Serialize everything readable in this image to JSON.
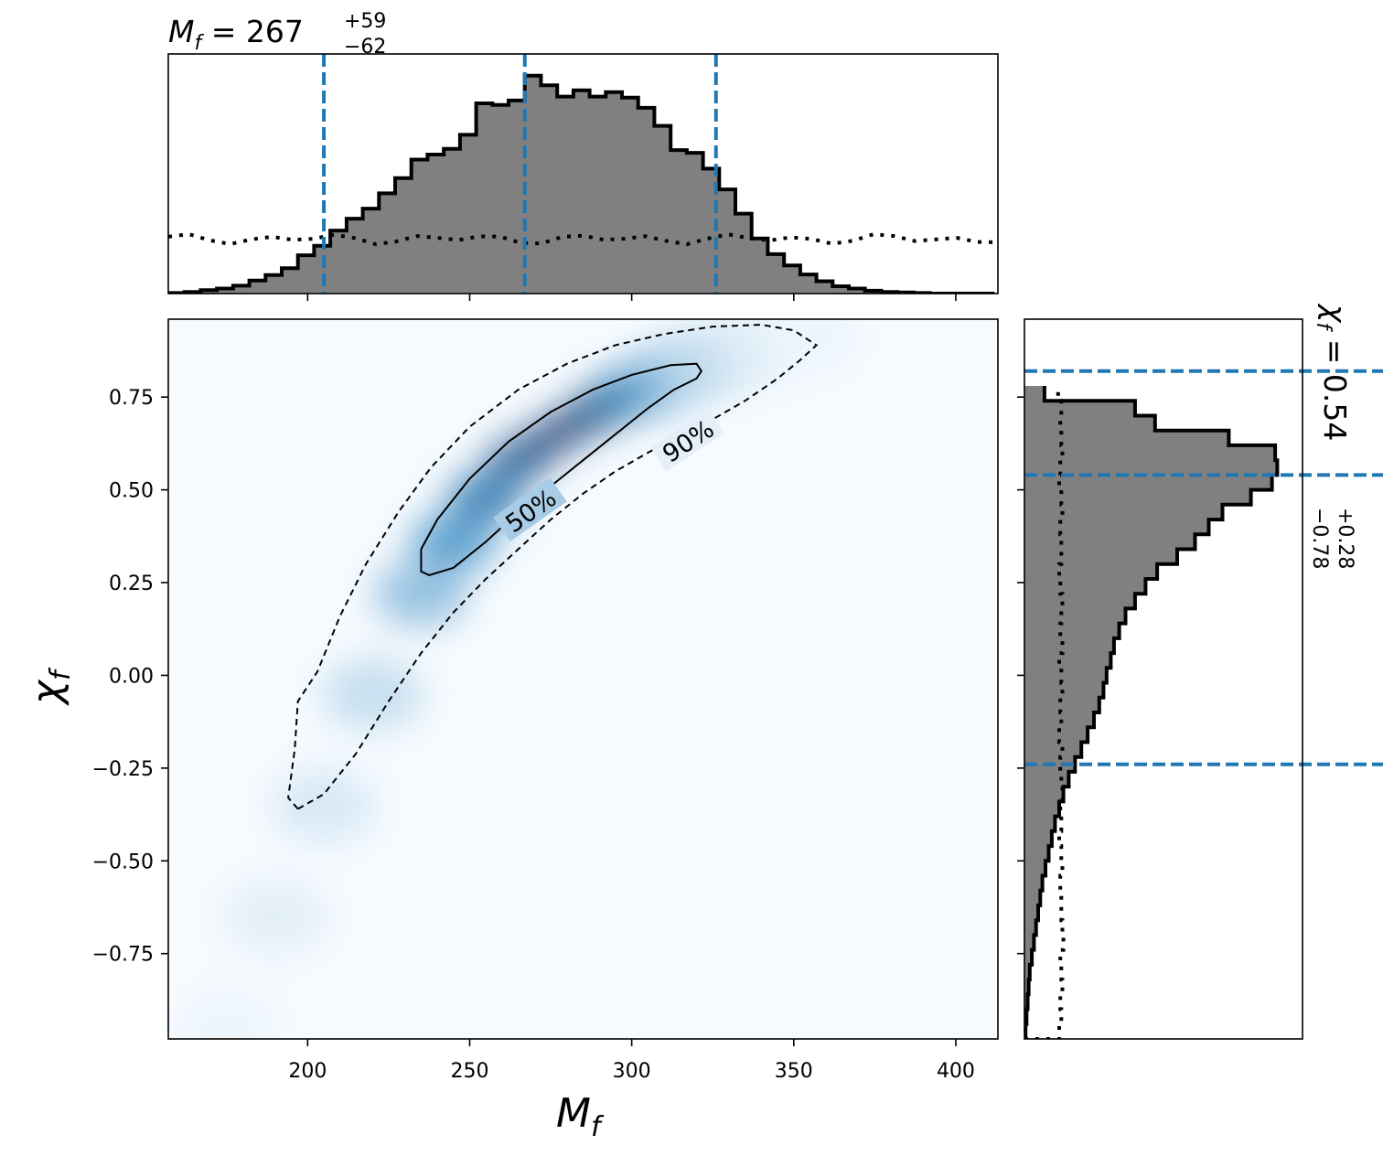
{
  "chart_data": {
    "type": "scatter",
    "subtype": "corner-plot",
    "x_param": "M_f",
    "y_param": "χ_f",
    "xlim": [
      157,
      413
    ],
    "ylim": [
      -0.98,
      0.96
    ],
    "xticks": [
      200,
      250,
      300,
      350,
      400
    ],
    "yticks": [
      -0.75,
      -0.5,
      -0.25,
      0.0,
      0.25,
      0.5,
      0.75
    ],
    "xtick_labels": [
      "200",
      "250",
      "300",
      "350",
      "400"
    ],
    "ytick_labels": [
      "−0.75",
      "−0.50",
      "−0.25",
      "0.00",
      "0.25",
      "0.50",
      "0.75"
    ],
    "xlabel_base": "M",
    "xlabel_sub": "f",
    "ylabel_base": "χ",
    "ylabel_sub": "f",
    "top_title": {
      "prefix": "M",
      "sub": "f",
      "eq": " = 267",
      "plus": "+59",
      "minus": "−62"
    },
    "right_title": {
      "prefix": "χ",
      "sub": "f",
      "eq": " = 0.54",
      "plus": "+0.28",
      "minus": "−0.78"
    },
    "mf_marginal": {
      "median": 267,
      "lower": 205,
      "upper": 326,
      "bin_edges_start": 157,
      "bin_width": 5,
      "counts": [
        0.1,
        0.3,
        0.6,
        0.9,
        1.4,
        2.3,
        3.3,
        4.5,
        6.8,
        8.5,
        11.2,
        13.3,
        15.1,
        17.8,
        20.5,
        23.8,
        24.7,
        25.7,
        28.2,
        33.8,
        33.5,
        34.3,
        38.7,
        37.0,
        35.0,
        36.1,
        35.0,
        35.8,
        34.8,
        33.0,
        29.8,
        25.5,
        25.0,
        22.2,
        18.5,
        14.2,
        9.8,
        7.0,
        5.0,
        3.4,
        2.2,
        1.3,
        0.9,
        0.5,
        0.3,
        0.2,
        0.1,
        0.0,
        0.0,
        0.0,
        0.0
      ],
      "prior_level": 9.7
    },
    "chi_marginal": {
      "median": 0.54,
      "lower": -0.24,
      "upper": 0.82,
      "bin_edges_start": -0.98,
      "bin_width": 0.04,
      "counts": [
        0.1,
        0.2,
        0.3,
        0.4,
        0.5,
        0.7,
        0.9,
        1.1,
        1.3,
        1.5,
        1.7,
        2.0,
        2.3,
        2.6,
        2.9,
        3.3,
        3.7,
        4.2,
        4.8,
        5.4,
        6.0,
        6.6,
        7.1,
        7.5,
        7.8,
        8.2,
        8.5,
        9.0,
        9.6,
        10.5,
        11.5,
        12.6,
        14.5,
        16.2,
        17.5,
        18.8,
        21.5,
        23.5,
        24.0,
        23.8,
        19.4,
        12.4,
        10.5,
        1.9
      ],
      "prior": [
        3.3,
        3.5,
        3.4,
        3.6,
        3.5,
        3.4,
        3.7,
        3.6,
        3.5,
        3.5,
        3.4,
        3.6,
        3.5,
        3.3,
        3.5,
        3.4,
        3.6,
        3.5,
        3.4,
        3.6,
        3.3,
        3.5,
        3.4,
        3.6,
        3.5,
        3.3,
        3.6,
        3.4,
        3.5,
        3.6,
        3.4,
        3.3,
        3.5,
        3.5,
        3.4,
        3.6,
        3.5,
        3.3,
        3.4,
        3.6,
        3.5,
        3.4,
        3.5,
        3.2
      ]
    },
    "contours": [
      {
        "label": "50%",
        "style": "solid",
        "points": [
          [
            237.5,
            0.27
          ],
          [
            245,
            0.29
          ],
          [
            255,
            0.36
          ],
          [
            265,
            0.44
          ],
          [
            275,
            0.51
          ],
          [
            285,
            0.58
          ],
          [
            295,
            0.65
          ],
          [
            305,
            0.72
          ],
          [
            313,
            0.77
          ],
          [
            320,
            0.8
          ],
          [
            321.5,
            0.82
          ],
          [
            320,
            0.84
          ],
          [
            312,
            0.836
          ],
          [
            300,
            0.81
          ],
          [
            288,
            0.77
          ],
          [
            275,
            0.71
          ],
          [
            262,
            0.63
          ],
          [
            250,
            0.53
          ],
          [
            240,
            0.42
          ],
          [
            235,
            0.34
          ],
          [
            235,
            0.28
          ],
          [
            237.5,
            0.27
          ]
        ]
      },
      {
        "label": "90%",
        "style": "dashed",
        "points": [
          [
            197,
            -0.36
          ],
          [
            205,
            -0.32
          ],
          [
            215,
            -0.21
          ],
          [
            225,
            -0.07
          ],
          [
            235,
            0.06
          ],
          [
            245,
            0.17
          ],
          [
            255,
            0.26
          ],
          [
            265,
            0.34
          ],
          [
            275,
            0.42
          ],
          [
            285,
            0.49
          ],
          [
            295,
            0.55
          ],
          [
            305,
            0.6
          ],
          [
            315,
            0.65
          ],
          [
            325,
            0.69
          ],
          [
            335,
            0.74
          ],
          [
            345,
            0.8
          ],
          [
            352,
            0.85
          ],
          [
            357,
            0.89
          ],
          [
            350,
            0.93
          ],
          [
            340,
            0.945
          ],
          [
            325,
            0.94
          ],
          [
            310,
            0.92
          ],
          [
            295,
            0.89
          ],
          [
            280,
            0.84
          ],
          [
            265,
            0.77
          ],
          [
            250,
            0.67
          ],
          [
            238,
            0.56
          ],
          [
            228,
            0.44
          ],
          [
            218,
            0.3
          ],
          [
            210,
            0.16
          ],
          [
            203,
            0.01
          ],
          [
            197,
            -0.07
          ],
          [
            196,
            -0.2
          ],
          [
            194,
            -0.33
          ],
          [
            197,
            -0.36
          ]
        ]
      }
    ],
    "density_ridge": [
      [
        175,
        -0.95,
        0.03
      ],
      [
        190,
        -0.65,
        0.06
      ],
      [
        205,
        -0.35,
        0.09
      ],
      [
        220,
        -0.05,
        0.14
      ],
      [
        235,
        0.22,
        0.28
      ],
      [
        245,
        0.36,
        0.45
      ],
      [
        255,
        0.48,
        0.62
      ],
      [
        265,
        0.58,
        0.82
      ],
      [
        275,
        0.64,
        1.0
      ],
      [
        285,
        0.69,
        0.95
      ],
      [
        295,
        0.74,
        0.72
      ],
      [
        305,
        0.78,
        0.48
      ],
      [
        315,
        0.82,
        0.28
      ],
      [
        325,
        0.85,
        0.15
      ],
      [
        340,
        0.89,
        0.07
      ],
      [
        355,
        0.92,
        0.03
      ]
    ],
    "colors": {
      "accent_line": "#1f77b4",
      "hist_fill": "#808080",
      "density_low": "#f7fbff",
      "density_high": "#08306b"
    },
    "legend": "none",
    "grid": false
  }
}
